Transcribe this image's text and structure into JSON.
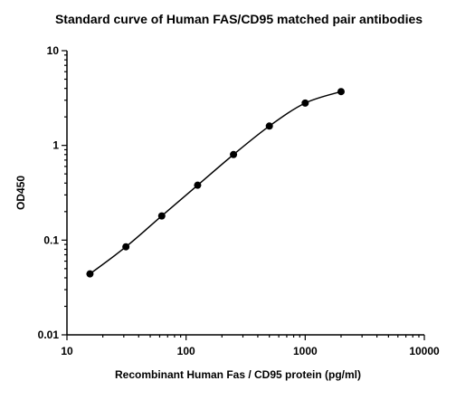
{
  "chart_data": {
    "type": "scatter",
    "title": "Standard curve of Human FAS/CD95 matched pair antibodies",
    "xlabel": "Recombinant Human Fas / CD95 protein (pg/ml)",
    "ylabel": "OD450",
    "xscale": "log",
    "yscale": "log",
    "xlim": [
      10,
      10000
    ],
    "ylim": [
      0.01,
      10
    ],
    "x_ticks": [
      10,
      100,
      1000,
      10000
    ],
    "x_tick_labels": [
      "10",
      "100",
      "1000",
      "10000"
    ],
    "y_ticks": [
      0.01,
      0.1,
      1,
      10
    ],
    "y_tick_labels": [
      "0.01",
      "0.1",
      "1",
      "10"
    ],
    "grid": false,
    "legend": "none",
    "fit_line": true,
    "series": [
      {
        "x": [
          15.6,
          31.25,
          62.5,
          125,
          250,
          500,
          1000,
          2000
        ],
        "y": [
          0.044,
          0.085,
          0.18,
          0.38,
          0.8,
          1.6,
          2.8,
          3.7
        ]
      }
    ],
    "colors": {
      "points": "#000000",
      "line": "#000000"
    }
  }
}
